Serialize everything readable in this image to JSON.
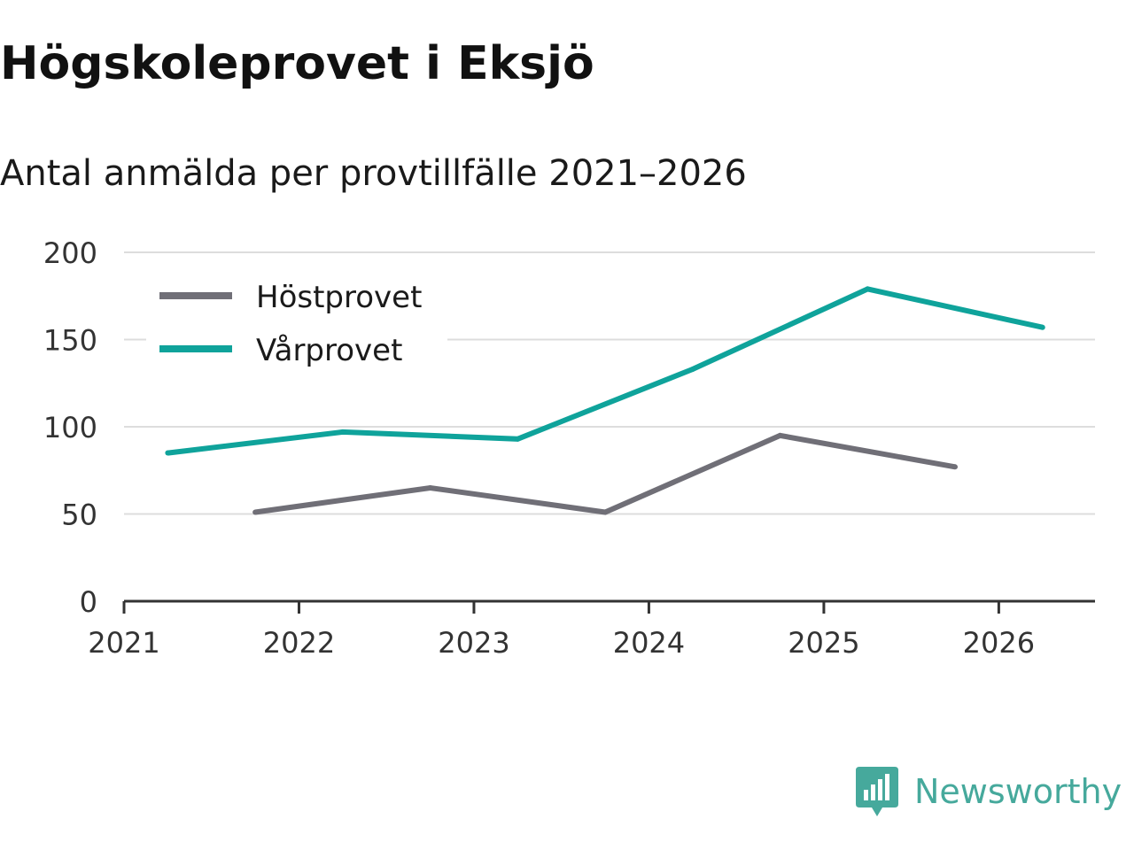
{
  "header": {
    "title": "Högskoleprovet i Eksjö",
    "subtitle": "Antal anmälda per provtillfälle 2021–2026"
  },
  "brand": {
    "name": "Newsworthy",
    "color": "#46a99c"
  },
  "chart_data": {
    "type": "line",
    "title": "Högskoleprovet i Eksjö",
    "subtitle": "Antal anmälda per provtillfälle 2021–2026",
    "xlabel": "",
    "ylabel": "",
    "xlim": [
      2021,
      2026.55
    ],
    "ylim": [
      0,
      200
    ],
    "x_ticks": [
      "2021",
      "2022",
      "2023",
      "2024",
      "2025",
      "2026"
    ],
    "y_ticks": [
      "0",
      "50",
      "100",
      "150",
      "200"
    ],
    "grid": true,
    "legend_position": "top-left",
    "series": [
      {
        "name": "Höstprovet",
        "color": "#706f77",
        "x": [
          2021.75,
          2022.75,
          2023.75,
          2024.75,
          2025.75
        ],
        "values": [
          51,
          65,
          51,
          95,
          77
        ]
      },
      {
        "name": "Vårprovet",
        "color": "#0fa39b",
        "x": [
          2021.25,
          2022.25,
          2023.25,
          2024.25,
          2025.25,
          2026.25
        ],
        "values": [
          85,
          97,
          93,
          133,
          179,
          157
        ]
      }
    ]
  }
}
